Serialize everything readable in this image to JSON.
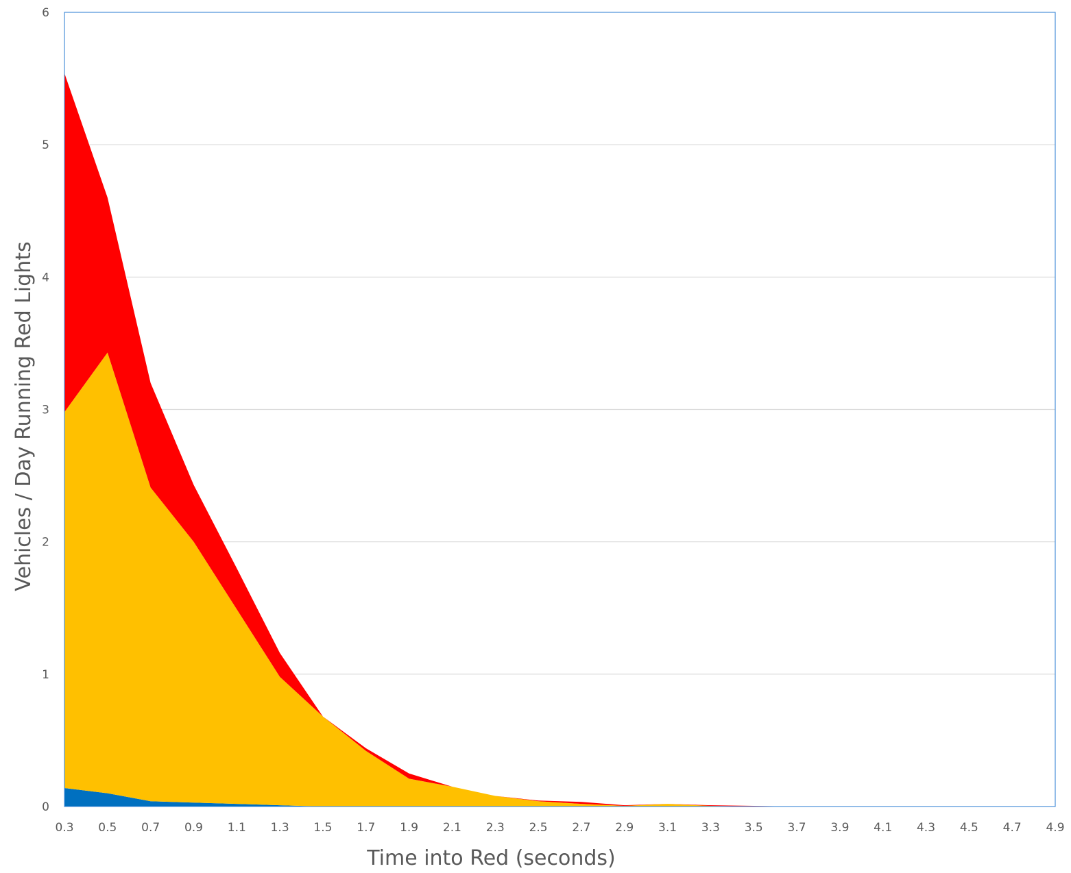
{
  "chart_data": {
    "type": "area",
    "stacked": true,
    "title": "",
    "xlabel": "Time into Red (seconds)",
    "ylabel": "Vehicles / Day Running Red Lights",
    "x": [
      0.3,
      0.5,
      0.7,
      0.9,
      1.1,
      1.3,
      1.5,
      1.7,
      1.9,
      2.1,
      2.3,
      2.5,
      2.7,
      2.9,
      3.1,
      3.3,
      3.5,
      3.7,
      3.9,
      4.1,
      4.3,
      4.5,
      4.7,
      4.9
    ],
    "xticks": [
      "0.3",
      "0.5",
      "0.7",
      "0.9",
      "1.1",
      "1.3",
      "1.5",
      "1.7",
      "1.9",
      "2.1",
      "2.3",
      "2.5",
      "2.7",
      "2.9",
      "3.1",
      "3.3",
      "3.5",
      "3.7",
      "3.9",
      "4.1",
      "4.3",
      "4.5",
      "4.7",
      "4.9"
    ],
    "yticks": [
      "0",
      "1",
      "2",
      "3",
      "4",
      "5",
      "6"
    ],
    "ylim": [
      0,
      6
    ],
    "xlim": [
      0.3,
      4.9
    ],
    "grid": true,
    "legend": "none",
    "series": [
      {
        "color": "#0070c0",
        "values": [
          0.14,
          0.1,
          0.04,
          0.03,
          0.02,
          0.01,
          0.0,
          0.0,
          0.0,
          0.0,
          0.0,
          0.0,
          0.0,
          0.0,
          0.0,
          0.0,
          0.0,
          0.0,
          0.0,
          0.0,
          0.0,
          0.0,
          0.0,
          0.0
        ]
      },
      {
        "color": "#ffc000",
        "values": [
          2.84,
          3.33,
          2.37,
          1.97,
          1.47,
          0.97,
          0.68,
          0.42,
          0.21,
          0.15,
          0.08,
          0.04,
          0.02,
          0.005,
          0.02,
          0.005,
          0.0,
          0.0,
          0.0,
          0.0,
          0.0,
          0.0,
          0.0,
          0.0
        ]
      },
      {
        "color": "#ff0000",
        "values": [
          2.56,
          1.17,
          0.79,
          0.43,
          0.31,
          0.18,
          0.0,
          0.02,
          0.04,
          0.0,
          0.0,
          0.005,
          0.015,
          0.005,
          0.0,
          0.005,
          0.005,
          0.0,
          0.0,
          0.0,
          0.0,
          0.0,
          0.0,
          0.0
        ]
      }
    ]
  }
}
